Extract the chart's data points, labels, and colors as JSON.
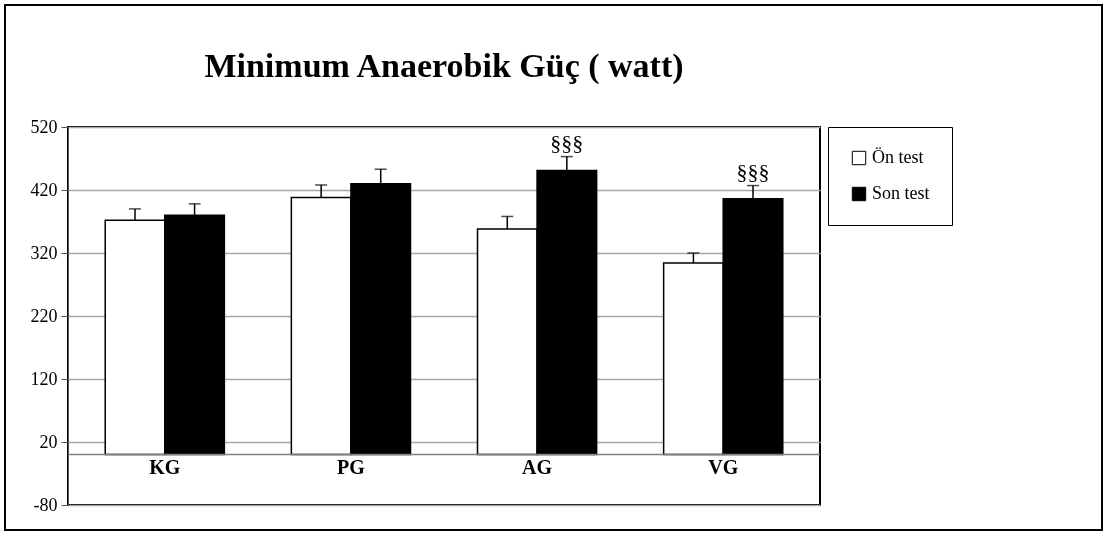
{
  "chart_data": {
    "type": "bar",
    "title": "Minimum Anaerobik Güç ( watt)",
    "categories": [
      "KG",
      "PG",
      "AG",
      "VG"
    ],
    "series": [
      {
        "name": "Ön test",
        "color": "#ffffff",
        "values": [
          372,
          408,
          358,
          304
        ],
        "errors": [
          [
            372,
            390
          ],
          [
            408,
            428
          ],
          [
            358,
            378
          ],
          [
            304,
            320
          ]
        ]
      },
      {
        "name": "Son test",
        "color": "#000000",
        "values": [
          380,
          430,
          451,
          406
        ],
        "errors": [
          [
            380,
            398
          ],
          [
            430,
            453
          ],
          [
            451,
            473
          ],
          [
            406,
            427
          ]
        ],
        "value_labels": [
          null,
          null,
          "§§§",
          "§§§"
        ]
      }
    ],
    "ylim": [
      -80,
      520
    ],
    "yticks": [
      -80,
      20,
      120,
      220,
      320,
      420,
      520
    ],
    "grid": "y",
    "legend": "right"
  }
}
